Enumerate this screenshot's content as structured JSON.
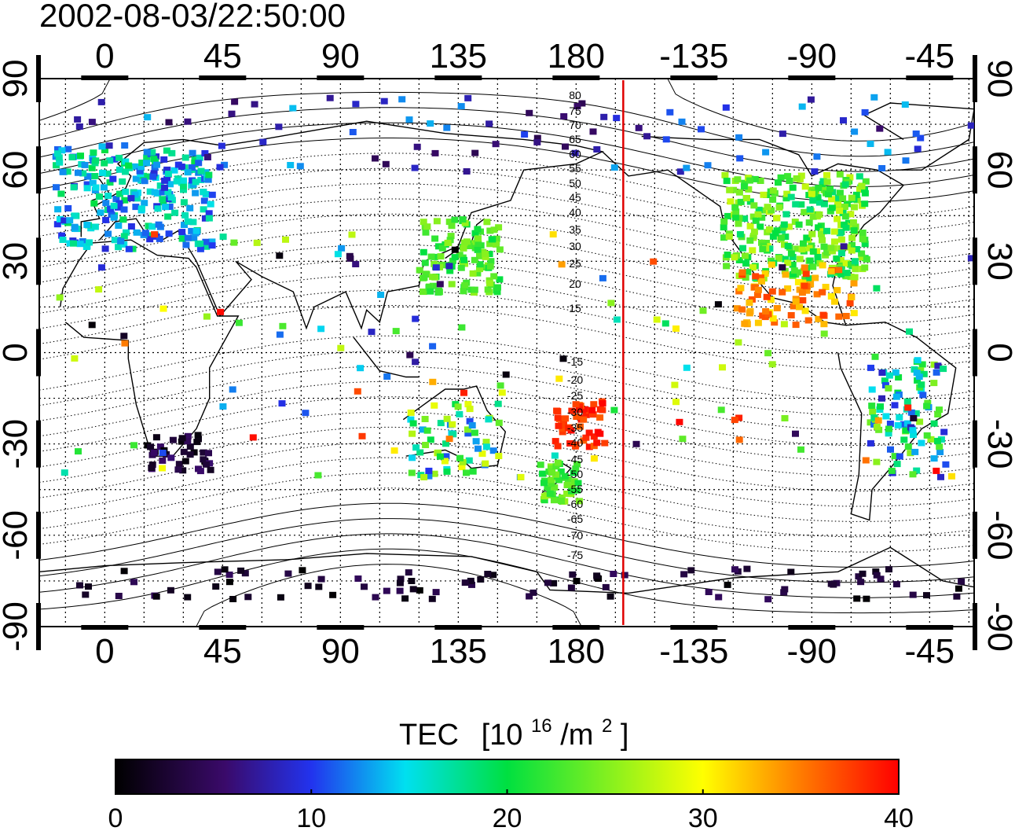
{
  "title": "2002-08-03/22:50:00",
  "map": {
    "top_lon_ticks": [
      "0",
      "45",
      "90",
      "135",
      "180",
      "-135",
      "-90",
      "-45"
    ],
    "bottom_lon_ticks": [
      "0",
      "45",
      "90",
      "135",
      "180",
      "-135",
      "-90",
      "-45"
    ],
    "left_lat_ticks": [
      "90",
      "60",
      "30",
      "0",
      "-30",
      "-60",
      "-90"
    ],
    "right_lat_ticks": [
      "90",
      "60",
      "30",
      "0",
      "-30",
      "-60",
      "-90"
    ],
    "contour_labels_north": [
      "80",
      "75",
      "70",
      "65",
      "60",
      "55",
      "50",
      "45",
      "40",
      "35",
      "30",
      "25",
      "20",
      "15"
    ],
    "contour_labels_south": [
      "-15",
      "-20",
      "-25",
      "-30",
      "-35",
      "-40",
      "-45",
      "-50",
      "-55",
      "-60",
      "-65",
      "-70",
      "-75"
    ],
    "terminator_longitude": -162,
    "terminator_color": "#e00000",
    "lon_range": [
      -25,
      332
    ],
    "lat_range": [
      -90,
      90
    ]
  },
  "colorbar": {
    "title": "TEC",
    "unit_base": "[10",
    "unit_exp": "16",
    "unit_mid": "/m",
    "unit_exp2": "2",
    "unit_close": "]",
    "tick_labels": [
      "0",
      "10",
      "20",
      "30",
      "40"
    ],
    "range": [
      0,
      40
    ],
    "stops": [
      "#000000",
      "#3a0a6a",
      "#2233ee",
      "#00e0f0",
      "#00e040",
      "#ffff00",
      "#ff8000",
      "#ff0000"
    ]
  }
}
